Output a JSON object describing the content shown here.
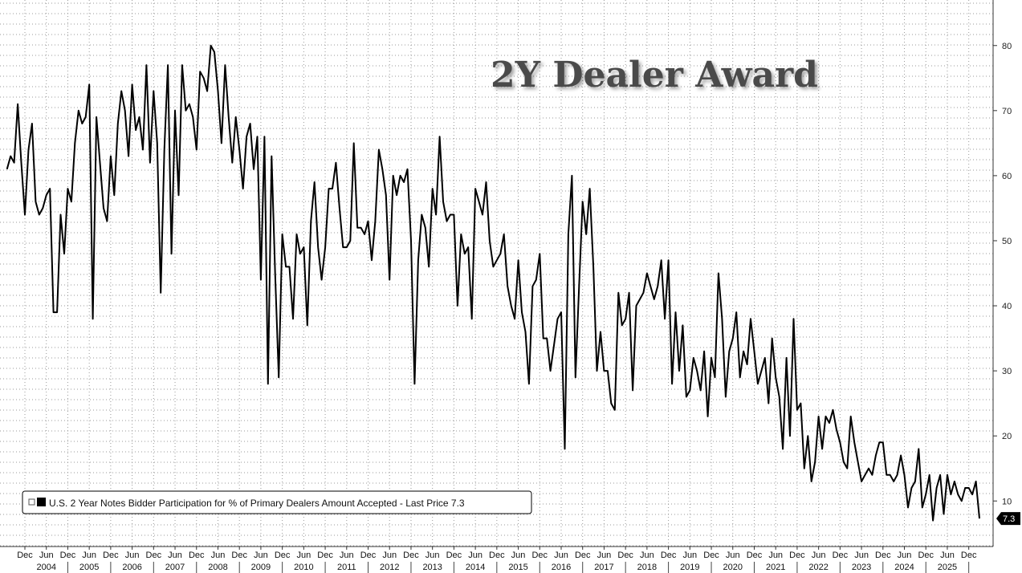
{
  "chart_data": {
    "type": "line",
    "title": "2Y Dealer Award",
    "ylim": [
      3,
      87
    ],
    "y_ticks": [
      10,
      20,
      30,
      40,
      50,
      60,
      70,
      80
    ],
    "grid": "dotted",
    "legend_position": "bottom-left",
    "x_tick_labels": [
      "Dec",
      "Jun",
      "Dec",
      "Jun",
      "Dec",
      "Jun",
      "Dec",
      "Jun",
      "Dec",
      "Jun",
      "Dec",
      "Jun",
      "Dec",
      "Jun",
      "Dec",
      "Jun",
      "Dec",
      "Jun",
      "Dec",
      "Jun",
      "Dec",
      "Jun",
      "Dec",
      "Jun",
      "Dec",
      "Jun",
      "Dec",
      "Jun",
      "Dec",
      "Jun",
      "Dec",
      "Jun",
      "Dec",
      "Jun",
      "Dec",
      "Jun",
      "Dec",
      "Jun",
      "Dec",
      "Jun",
      "Dec",
      "Jun",
      "Dec",
      "Jun",
      "Dec"
    ],
    "years": [
      "2004",
      "2005",
      "2006",
      "2007",
      "2008",
      "2009",
      "2010",
      "2011",
      "2012",
      "2013",
      "2014",
      "2015",
      "2016",
      "2017",
      "2018",
      "2019",
      "2020",
      "2021",
      "2022",
      "2023",
      "2024",
      "2025"
    ],
    "series": [
      {
        "name": "U.S. 2 Year Notes Bidder Participation for % of Primary Dealers Amount Accepted - Last Price 7.3",
        "last_value_label": "7.3",
        "x_start": "2003-12",
        "frequency": "monthly",
        "values": [
          61,
          63,
          62,
          71,
          62,
          54,
          64,
          68,
          56,
          54,
          55,
          57,
          58,
          39,
          39,
          54,
          48,
          58,
          56,
          65,
          70,
          68,
          69,
          74,
          38,
          69,
          62,
          55,
          53,
          63,
          57,
          68,
          73,
          70,
          63,
          74,
          67,
          69,
          64,
          77,
          62,
          73,
          65,
          42,
          64,
          77,
          48,
          70,
          57,
          77,
          70,
          71,
          69,
          64,
          76,
          75,
          73,
          80,
          79,
          73,
          65,
          77,
          69,
          62,
          69,
          64,
          58,
          66,
          68,
          61,
          66,
          44,
          66,
          28,
          63,
          45,
          29,
          51,
          46,
          46,
          38,
          51,
          48,
          49,
          37,
          53,
          59,
          49,
          44,
          49,
          58,
          58,
          62,
          55,
          49,
          49,
          50,
          65,
          52,
          52,
          51,
          53,
          47,
          53,
          64,
          61,
          57,
          44,
          60,
          57,
          60,
          59,
          61,
          50,
          28,
          47,
          54,
          52,
          46,
          58,
          54,
          66,
          56,
          53,
          54,
          54,
          40,
          51,
          48,
          49,
          38,
          58,
          56,
          54,
          59,
          50,
          46,
          47,
          48,
          51,
          43,
          40,
          38,
          47,
          39,
          36,
          28,
          43,
          44,
          48,
          35,
          35,
          30,
          34,
          38,
          39,
          18,
          51,
          60,
          29,
          43,
          56,
          51,
          58,
          46,
          30,
          36,
          30,
          30,
          25,
          24,
          42,
          37,
          38,
          42,
          27,
          40,
          41,
          42,
          45,
          43,
          41,
          43,
          47,
          38,
          47,
          28,
          39,
          30,
          37,
          26,
          27,
          32,
          30,
          27,
          33,
          23,
          32,
          29,
          45,
          38,
          26,
          33,
          35,
          39,
          29,
          33,
          31,
          38,
          33,
          28,
          30,
          32,
          25,
          35,
          29,
          26,
          18,
          32,
          20,
          38,
          24,
          25,
          15,
          20,
          13,
          16,
          23,
          18,
          23,
          22,
          24,
          21,
          19,
          16,
          15,
          23,
          19,
          16,
          13,
          14,
          15,
          14,
          17,
          19,
          19,
          14,
          14,
          13,
          14,
          17,
          14,
          9,
          12,
          13,
          18,
          9,
          11,
          14,
          7,
          12,
          14,
          8,
          14,
          11,
          13,
          11,
          10,
          12,
          12,
          11,
          13,
          7.3
        ]
      }
    ]
  }
}
